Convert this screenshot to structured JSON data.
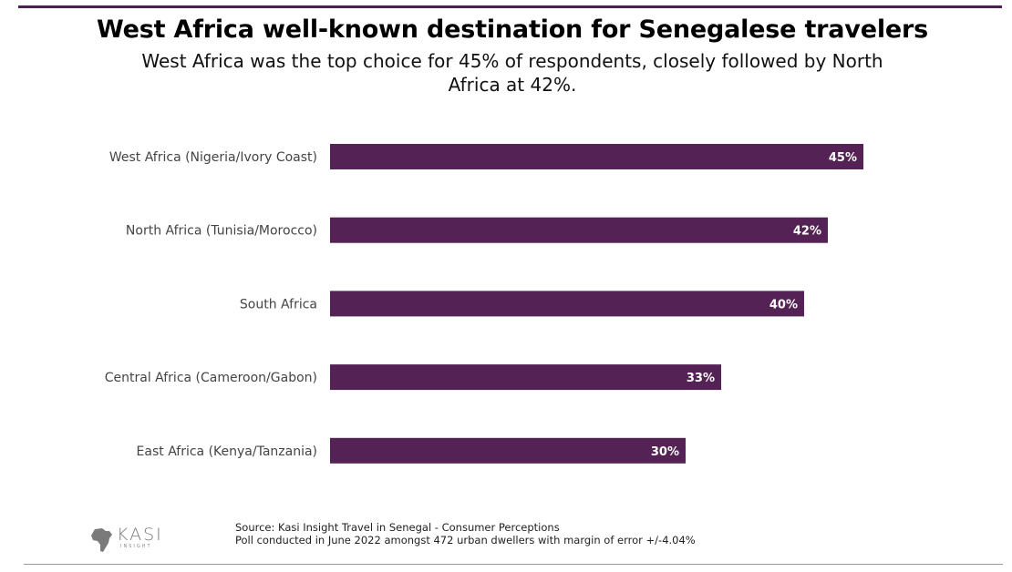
{
  "header": {
    "title": "West Africa well-known destination for Senegalese travelers",
    "subtitle": "West Africa was the top choice for 45% of respondents, closely followed by North Africa at 42%."
  },
  "footer": {
    "source_line1": "Source: Kasi Insight Travel in Senegal - Consumer Perceptions",
    "source_line2": "Poll conducted in June 2022 amongst 472 urban dwellers with margin of error +/-4.04%",
    "logo_text": "KASI",
    "logo_subtext": "INSIGHT"
  },
  "colors": {
    "bar": "#542254",
    "rule": "#4b2053"
  },
  "chart_data": {
    "type": "bar",
    "orientation": "horizontal",
    "categories": [
      "West Africa (Nigeria/Ivory Coast)",
      "North Africa (Tunisia/Morocco)",
      "South Africa",
      "Central Africa (Cameroon/Gabon)",
      "East Africa (Kenya/Tanzania)"
    ],
    "values": [
      45,
      42,
      40,
      33,
      30
    ],
    "value_labels": [
      "45%",
      "42%",
      "40%",
      "33%",
      "30%"
    ],
    "unit": "%",
    "xlim": [
      0,
      60
    ],
    "grid": false,
    "legend": "none"
  }
}
